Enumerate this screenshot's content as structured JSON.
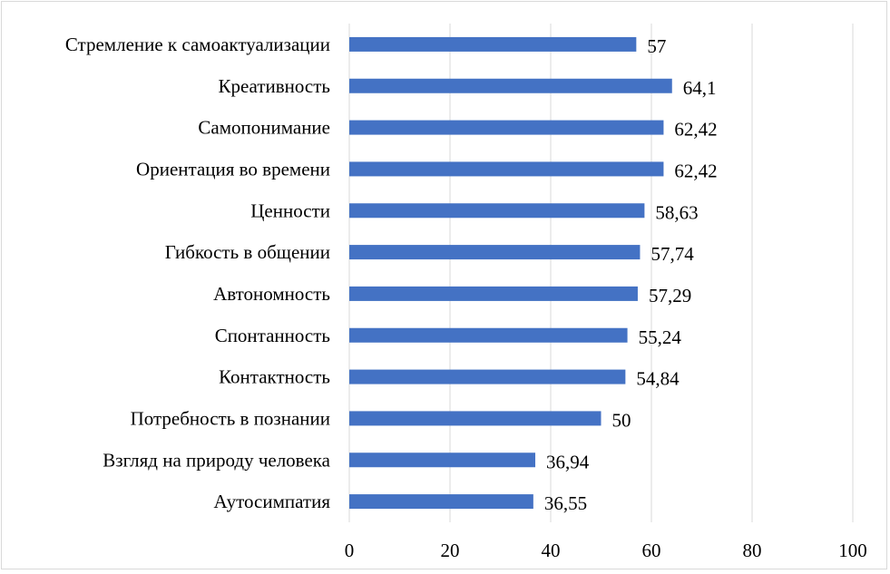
{
  "chart_data": {
    "type": "bar",
    "orientation": "horizontal",
    "title": "",
    "xlabel": "",
    "ylabel": "",
    "categories": [
      "Стремление к самоактуализации",
      "Креативность",
      "Самопонимание",
      "Ориентация во времени",
      "Ценности",
      "Гибкость в общении",
      "Автономность",
      "Спонтанность",
      "Контактность",
      "Потребность в познании",
      "Взгляд на природу человека",
      "Аутосимпатия"
    ],
    "values": [
      57,
      64.1,
      62.42,
      62.42,
      58.63,
      57.74,
      57.29,
      55.24,
      54.84,
      50,
      36.94,
      36.55
    ],
    "value_labels": [
      "57",
      "64,1",
      "62,42",
      "62,42",
      "58,63",
      "57,74",
      "57,29",
      "55,24",
      "54,84",
      "50",
      "36,94",
      "36,55"
    ],
    "xlim": [
      0,
      100
    ],
    "x_ticks": [
      0,
      20,
      40,
      60,
      80,
      100
    ],
    "x_tick_labels": [
      "0",
      "20",
      "40",
      "60",
      "80",
      "100"
    ],
    "grid": "vertical",
    "legend": "none",
    "bar_color": "#4472c4",
    "grid_color": "#d9d9d9"
  }
}
